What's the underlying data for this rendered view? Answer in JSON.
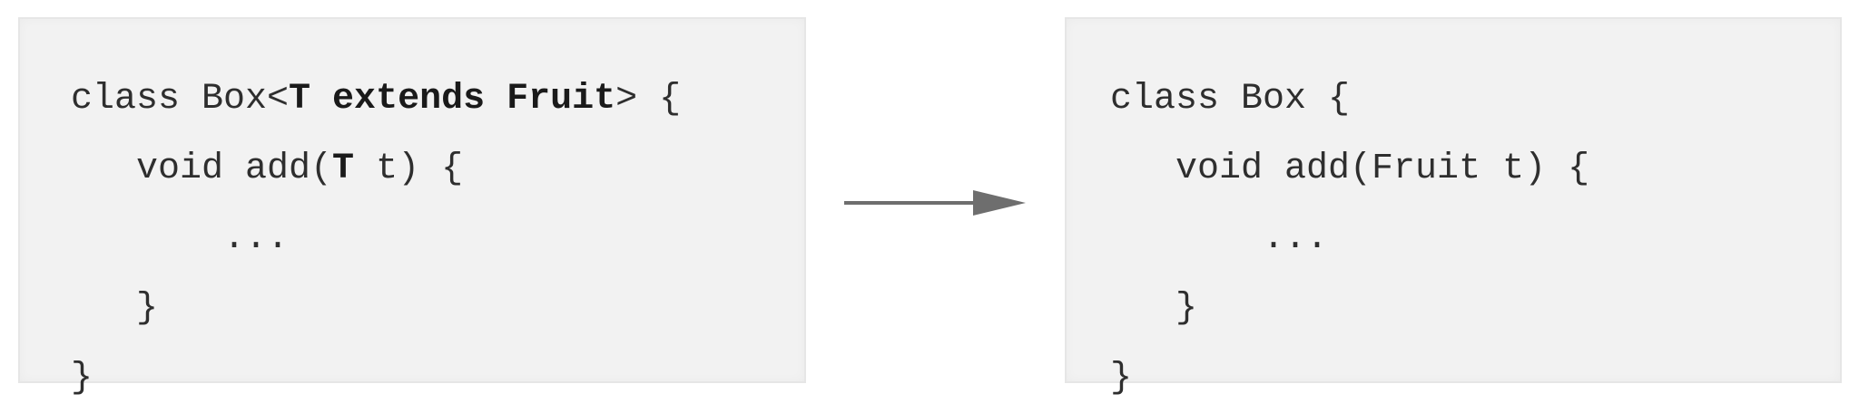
{
  "left_code": {
    "lines": [
      [
        {
          "text": "class Box<",
          "bold": false
        },
        {
          "text": "T extends Fruit",
          "bold": true
        },
        {
          "text": "> {",
          "bold": false
        }
      ],
      [
        {
          "text": "   void add(",
          "bold": false
        },
        {
          "text": "T",
          "bold": true
        },
        {
          "text": " t) {",
          "bold": false
        }
      ],
      [
        {
          "text": "       ...",
          "bold": false
        }
      ],
      [
        {
          "text": "   }",
          "bold": false
        }
      ],
      [
        {
          "text": "}",
          "bold": false
        }
      ]
    ]
  },
  "right_code": {
    "lines": [
      [
        {
          "text": "class Box {",
          "bold": false
        }
      ],
      [
        {
          "text": "   void add(Fruit t) {",
          "bold": false
        }
      ],
      [
        {
          "text": "       ...",
          "bold": false
        }
      ],
      [
        {
          "text": "   }",
          "bold": false
        }
      ],
      [
        {
          "text": "}",
          "bold": false
        }
      ]
    ]
  },
  "colors": {
    "box_background": "#f2f2f2",
    "code_text": "#2e2e2e",
    "arrow": "#6e6e6e"
  }
}
